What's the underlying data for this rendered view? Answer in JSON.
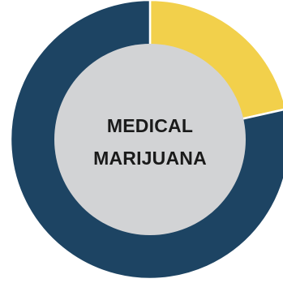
{
  "chart_data": {
    "type": "pie",
    "variant": "donut",
    "slices": [
      {
        "label": "",
        "value": 21.5,
        "color": "#f2d04b"
      },
      {
        "label": "",
        "value": 78.5,
        "color": "#1d4463"
      }
    ],
    "center_label_lines": [
      "MEDICAL",
      "MARIJUANA"
    ],
    "center_color": "#d2d3d5",
    "title": ""
  }
}
